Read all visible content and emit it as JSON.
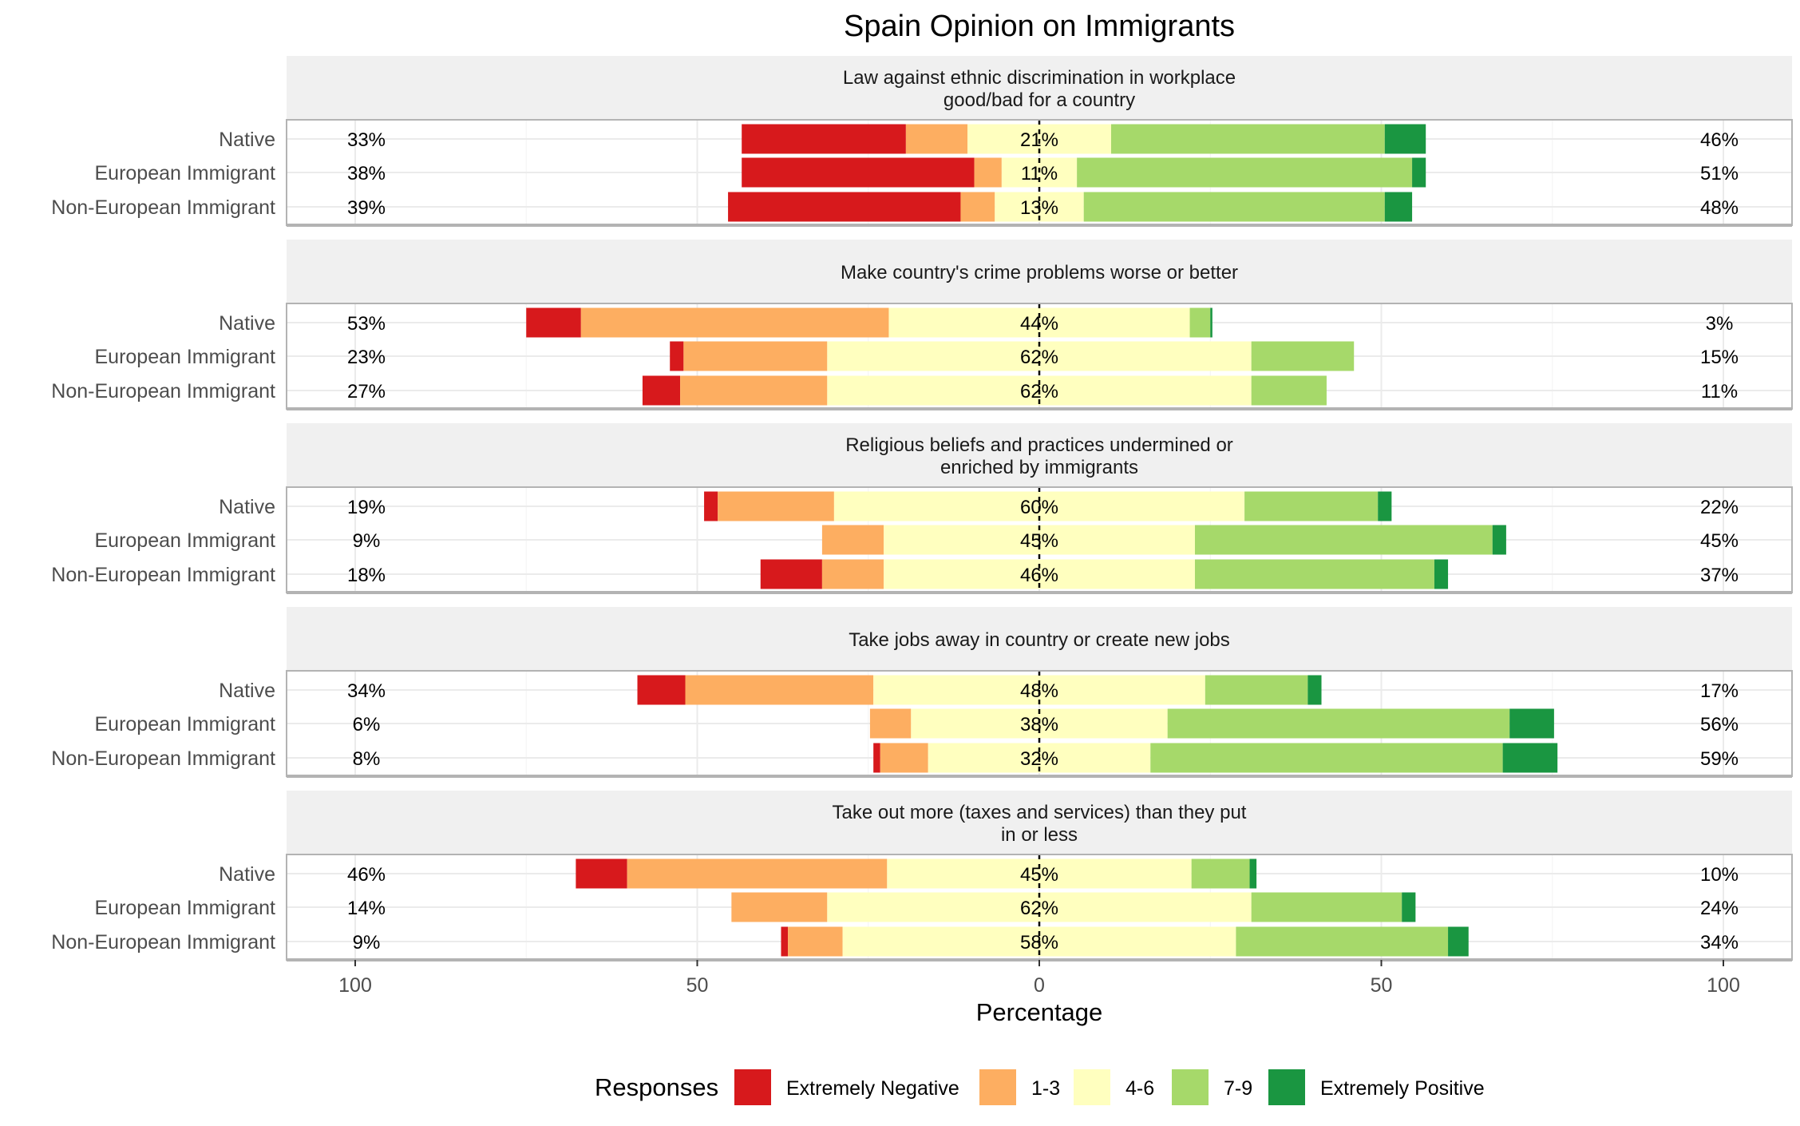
{
  "chart_data": {
    "type": "bar",
    "subtype": "diverging-stacked-bar",
    "title": "Spain Opinion on Immigrants",
    "xlabel": "Percentage",
    "xlim": [
      -100,
      100
    ],
    "x_ticks": [
      {
        "value": -100,
        "label": "100"
      },
      {
        "value": -50,
        "label": "50"
      },
      {
        "value": 0,
        "label": "0"
      },
      {
        "value": 50,
        "label": "50"
      },
      {
        "value": 100,
        "label": "100"
      }
    ],
    "grid": true,
    "legend": {
      "title": "Responses",
      "position": "bottom",
      "items": [
        {
          "label": "Extremely Negative",
          "color": "#d7191c"
        },
        {
          "label": "1-3",
          "color": "#fdae61"
        },
        {
          "label": "4-6",
          "color": "#ffffbf"
        },
        {
          "label": "7-9",
          "color": "#a6d96a"
        },
        {
          "label": "Extremely Positive",
          "color": "#1a9641"
        }
      ]
    },
    "groups": [
      "Native",
      "European Immigrant",
      "Non-European Immigrant"
    ],
    "panels": [
      {
        "title_lines": [
          "Law against ethnic discrimination in workplace",
          "good/bad for a country"
        ],
        "rows": [
          {
            "group": "Native",
            "values": [
              24,
              9,
              21,
              40,
              6
            ],
            "left_label": "33%",
            "center_label": "21%",
            "right_label": "46%"
          },
          {
            "group": "European Immigrant",
            "values": [
              34,
              4,
              11,
              49,
              2
            ],
            "left_label": "38%",
            "center_label": "11%",
            "right_label": "51%"
          },
          {
            "group": "Non-European Immigrant",
            "values": [
              34,
              5,
              13,
              44,
              4
            ],
            "left_label": "39%",
            "center_label": "13%",
            "right_label": "48%"
          }
        ]
      },
      {
        "title_lines": [
          "Make country's crime problems worse or better"
        ],
        "rows": [
          {
            "group": "Native",
            "values": [
              8,
              45,
              44,
              3,
              0.3
            ],
            "left_label": "53%",
            "center_label": "44%",
            "right_label": "3%"
          },
          {
            "group": "European Immigrant",
            "values": [
              2,
              21,
              62,
              15,
              0
            ],
            "left_label": "23%",
            "center_label": "62%",
            "right_label": "15%"
          },
          {
            "group": "Non-European Immigrant",
            "values": [
              5.5,
              21.5,
              62,
              11,
              0
            ],
            "left_label": "27%",
            "center_label": "62%",
            "right_label": "11%"
          }
        ]
      },
      {
        "title_lines": [
          "Religious beliefs and practices undermined or",
          "enriched by immigrants"
        ],
        "rows": [
          {
            "group": "Native",
            "values": [
              2,
              17,
              60,
              19.5,
              2
            ],
            "left_label": "19%",
            "center_label": "60%",
            "right_label": "22%"
          },
          {
            "group": "European Immigrant",
            "values": [
              0,
              9,
              45.5,
              43.5,
              2
            ],
            "left_label": "9%",
            "center_label": "45%",
            "right_label": "45%"
          },
          {
            "group": "Non-European Immigrant",
            "values": [
              9,
              9,
              45.5,
              35,
              2
            ],
            "left_label": "18%",
            "center_label": "46%",
            "right_label": "37%"
          }
        ]
      },
      {
        "title_lines": [
          "Take jobs away in country or create new jobs"
        ],
        "rows": [
          {
            "group": "Native",
            "values": [
              7,
              27.5,
              48.5,
              15,
              2
            ],
            "left_label": "34%",
            "center_label": "48%",
            "right_label": "17%"
          },
          {
            "group": "European Immigrant",
            "values": [
              0,
              6,
              37.5,
              50,
              6.5
            ],
            "left_label": "6%",
            "center_label": "38%",
            "right_label": "56%"
          },
          {
            "group": "Non-European Immigrant",
            "values": [
              1,
              7,
              32.5,
              51.5,
              8
            ],
            "left_label": "8%",
            "center_label": "32%",
            "right_label": "59%"
          }
        ]
      },
      {
        "title_lines": [
          "Take out more (taxes and services) than they put",
          "in or less"
        ],
        "rows": [
          {
            "group": "Native",
            "values": [
              7.5,
              38,
              44.5,
              8.5,
              1
            ],
            "left_label": "46%",
            "center_label": "45%",
            "right_label": "10%"
          },
          {
            "group": "European Immigrant",
            "values": [
              0,
              14,
              62,
              22,
              2
            ],
            "left_label": "14%",
            "center_label": "62%",
            "right_label": "24%"
          },
          {
            "group": "Non-European Immigrant",
            "values": [
              1,
              8,
              57.5,
              31,
              3
            ],
            "left_label": "9%",
            "center_label": "58%",
            "right_label": "34%"
          }
        ]
      }
    ]
  }
}
